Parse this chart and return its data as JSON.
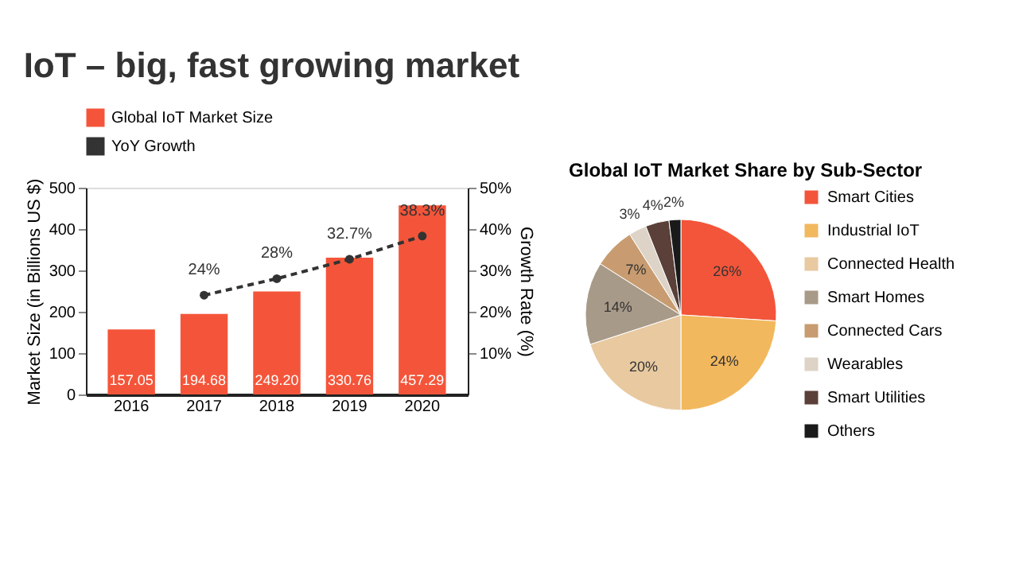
{
  "chart_data": [
    {
      "type": "bar",
      "title": "IoT – big, fast growing market",
      "categories": [
        "2016",
        "2017",
        "2018",
        "2019",
        "2020"
      ],
      "series": [
        {
          "name": "Global IoT Market Size",
          "type": "bar",
          "color": "#f4553a",
          "values": [
            157.05,
            194.68,
            249.2,
            330.76,
            457.29
          ],
          "value_labels": [
            "157.05",
            "194.68",
            "249.20",
            "330.76",
            "457.29"
          ]
        },
        {
          "name": "YoY Growth",
          "type": "line",
          "axis": "y2",
          "color": "#333333",
          "marker": "circle",
          "line_style": "dashed",
          "values": [
            null,
            24,
            28,
            32.7,
            38.3
          ],
          "value_labels": [
            null,
            "24%",
            "28%",
            "32.7%",
            "38.3%"
          ]
        }
      ],
      "ylabel": "Market Size (in Billions US $)",
      "y2label": "Growth Rate (%)",
      "ylim": [
        0,
        500
      ],
      "yticks": [
        0,
        100,
        200,
        300,
        400,
        500
      ],
      "y2lim": [
        0,
        50
      ],
      "y2ticks": [
        {
          "value": 10,
          "label": "10%"
        },
        {
          "value": 20,
          "label": "20%"
        },
        {
          "value": 30,
          "label": "30%"
        },
        {
          "value": 40,
          "label": "40%"
        },
        {
          "value": 50,
          "label": "50%"
        }
      ],
      "legend": "top",
      "grid": false
    },
    {
      "type": "pie",
      "title": "Global IoT Market Share by Sub-Sector",
      "categories": [
        "Smart Cities",
        "Industrial IoT",
        "Connected Health",
        "Smart Homes",
        "Connected Cars",
        "Wearables",
        "Smart Utilities",
        "Others"
      ],
      "values": [
        26,
        24,
        20,
        14,
        7,
        3,
        4,
        2
      ],
      "colors": [
        "#f2553a",
        "#f2b85e",
        "#e8c9a0",
        "#a89a88",
        "#c89c70",
        "#ddd3c6",
        "#5a4038",
        "#1a1a1a"
      ],
      "value_labels": [
        "26%",
        "24%",
        "20%",
        "14%",
        "7%",
        "3%",
        "4%",
        "2%"
      ],
      "legend": "right"
    }
  ]
}
